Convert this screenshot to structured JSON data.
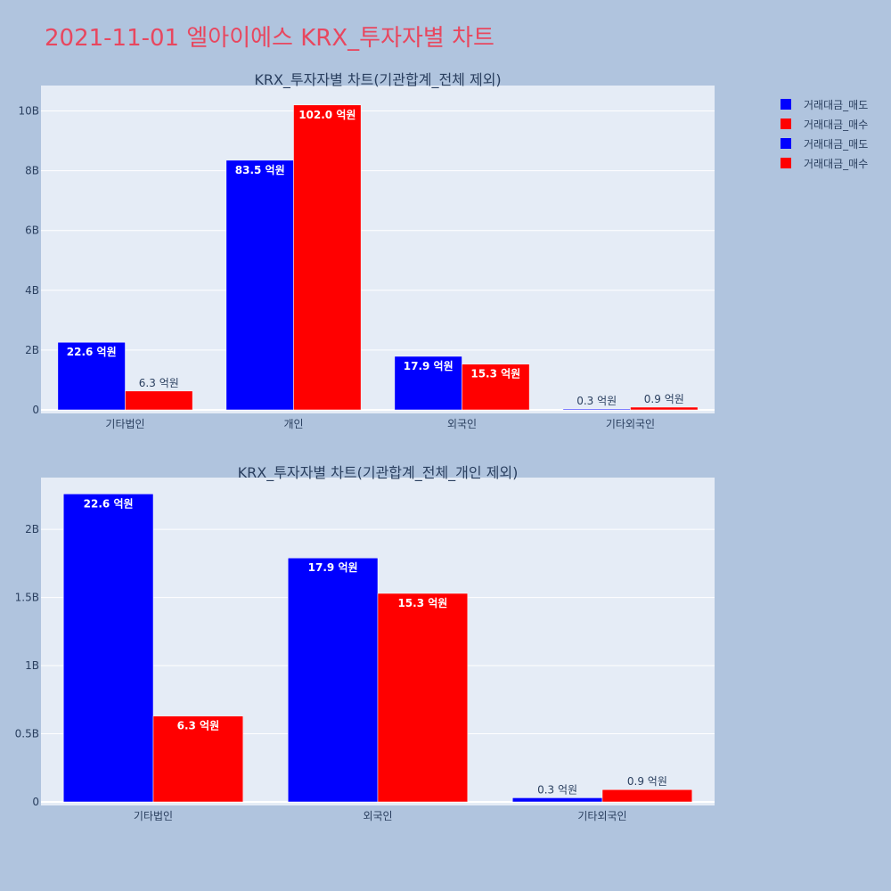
{
  "page_title": "2021-11-01 엘아이에스 KRX_투자자별 차트",
  "colors": {
    "sell": "#0000ff",
    "buy": "#ff0000",
    "plot_bg": "#e5ecf6",
    "page_bg": "#b0c4de",
    "title": "#e8475f",
    "text": "#2a3f5f"
  },
  "legend": [
    {
      "label": "거래대금_매도",
      "color": "#0000ff"
    },
    {
      "label": "거래대금_매수",
      "color": "#ff0000"
    },
    {
      "label": "거래대금_매도",
      "color": "#0000ff"
    },
    {
      "label": "거래대금_매수",
      "color": "#ff0000"
    }
  ],
  "chart_data": [
    {
      "type": "bar",
      "title": "KRX_투자자별 차트(기관합계_전체 제외)",
      "categories": [
        "기타법인",
        "개인",
        "외국인",
        "기타외국인"
      ],
      "series": [
        {
          "name": "거래대금_매도",
          "color": "#0000ff",
          "values": [
            2260000000,
            8350000000,
            1790000000,
            30000000
          ],
          "labels": [
            "22.6 억원",
            "83.5 억원",
            "17.9 억원",
            "0.3 억원"
          ]
        },
        {
          "name": "거래대금_매수",
          "color": "#ff0000",
          "values": [
            630000000,
            10200000000,
            1530000000,
            90000000
          ],
          "labels": [
            "6.3 억원",
            "102.0 억원",
            "15.3 억원",
            "0.9 억원"
          ]
        }
      ],
      "ylim": [
        0,
        10850000000
      ],
      "yticks": [
        0,
        2000000000,
        4000000000,
        6000000000,
        8000000000,
        10000000000
      ],
      "ytick_labels": [
        "0",
        "2B",
        "4B",
        "6B",
        "8B",
        "10B"
      ],
      "grid": true,
      "legend": "top-right"
    },
    {
      "type": "bar",
      "title": "KRX_투자자별 차트(기관합계_전체_개인 제외)",
      "categories": [
        "기타법인",
        "외국인",
        "기타외국인"
      ],
      "series": [
        {
          "name": "거래대금_매도",
          "color": "#0000ff",
          "values": [
            2260000000,
            1790000000,
            30000000
          ],
          "labels": [
            "22.6 억원",
            "17.9 억원",
            "0.3 억원"
          ]
        },
        {
          "name": "거래대금_매수",
          "color": "#ff0000",
          "values": [
            630000000,
            1530000000,
            90000000
          ],
          "labels": [
            "6.3 억원",
            "15.3 억원",
            "0.9 억원"
          ]
        }
      ],
      "ylim": [
        0,
        2380000000
      ],
      "yticks": [
        0,
        500000000,
        1000000000,
        1500000000,
        2000000000
      ],
      "ytick_labels": [
        "0",
        "0.5B",
        "1B",
        "1.5B",
        "2B"
      ],
      "grid": true,
      "legend": "top-right"
    }
  ]
}
